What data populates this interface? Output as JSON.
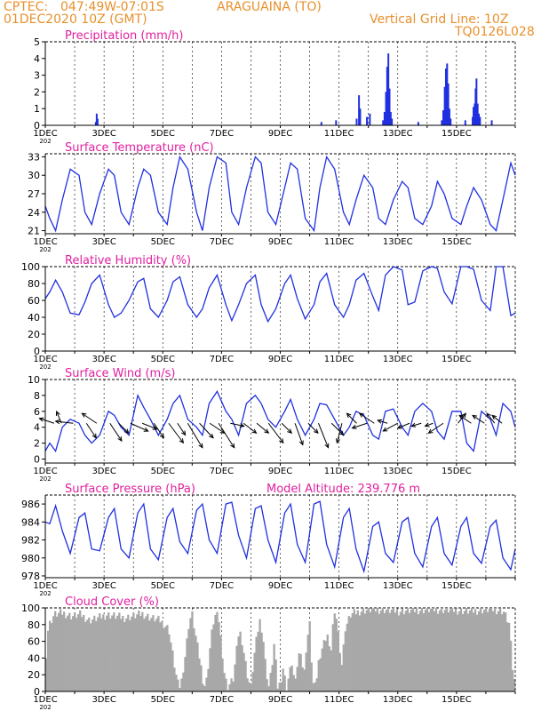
{
  "header": {
    "source": "CPTEC:",
    "coords": "047:49W-07:01S",
    "station": "ARAGUAINA (TO)",
    "run": "01DEC2020 10Z (GMT)",
    "grid_note": "Vertical Grid Line: 10Z",
    "code": "TQ0126L028"
  },
  "colors": {
    "header": "#e8902c",
    "title": "#e020a0",
    "series": "#2030e0",
    "cloud": "#a8a8a8",
    "wind": "#000000",
    "axis": "#000000"
  },
  "x_tick_labels": [
    "1DEC",
    "3DEC",
    "5DEC",
    "7DEC",
    "9DEC",
    "11DEC",
    "13DEC",
    "15DEC"
  ],
  "x_cut_label": "202",
  "chart_data": [
    {
      "type": "bar",
      "id": "precip",
      "title": "Precipitation (mm/h)",
      "ylim": [
        0,
        5
      ],
      "yticks": [
        0,
        1,
        2,
        3,
        4,
        5
      ],
      "bars": [
        [
          1.75,
          0.7
        ],
        [
          1.78,
          0.4
        ],
        [
          1.72,
          0.2
        ],
        [
          9.4,
          0.2
        ],
        [
          9.9,
          0.3
        ],
        [
          10.6,
          0.4
        ],
        [
          10.68,
          1.8
        ],
        [
          10.72,
          1.0
        ],
        [
          10.95,
          0.5
        ],
        [
          11.05,
          0.7
        ],
        [
          11.5,
          0.3
        ],
        [
          11.55,
          0.8
        ],
        [
          11.6,
          2.0
        ],
        [
          11.64,
          3.5
        ],
        [
          11.68,
          4.3
        ],
        [
          11.72,
          2.2
        ],
        [
          11.76,
          0.8
        ],
        [
          11.8,
          0.4
        ],
        [
          12.7,
          0.2
        ],
        [
          13.5,
          0.3
        ],
        [
          13.55,
          0.9
        ],
        [
          13.6,
          2.3
        ],
        [
          13.64,
          3.4
        ],
        [
          13.68,
          3.7
        ],
        [
          13.72,
          2.5
        ],
        [
          13.76,
          1.0
        ],
        [
          13.8,
          0.4
        ],
        [
          14.3,
          0.3
        ],
        [
          14.55,
          0.5
        ],
        [
          14.58,
          1.1
        ],
        [
          14.62,
          1.3
        ],
        [
          14.65,
          2.2
        ],
        [
          14.68,
          2.8
        ],
        [
          14.72,
          1.3
        ],
        [
          14.76,
          0.7
        ],
        [
          14.8,
          0.5
        ],
        [
          15.2,
          0.3
        ]
      ]
    },
    {
      "type": "line",
      "id": "temp",
      "title": "Surface Temperature (nC)",
      "ylim": [
        20.5,
        33.5
      ],
      "yticks": [
        21,
        24,
        27,
        30,
        33
      ],
      "x": [
        0,
        0.15,
        0.35,
        0.58,
        0.85,
        1.15,
        1.35,
        1.58,
        1.85,
        2.15,
        2.35,
        2.58,
        2.85,
        3.15,
        3.35,
        3.58,
        3.85,
        4.15,
        4.35,
        4.58,
        4.85,
        5.15,
        5.35,
        5.58,
        5.85,
        6.15,
        6.35,
        6.58,
        6.85,
        7.15,
        7.35,
        7.58,
        7.85,
        8.15,
        8.35,
        8.58,
        8.85,
        9.15,
        9.35,
        9.58,
        9.85,
        10.15,
        10.35,
        10.58,
        10.85,
        11.15,
        11.35,
        11.58,
        11.85,
        12.15,
        12.35,
        12.58,
        12.85,
        13.15,
        13.35,
        13.58,
        13.85,
        14.15,
        14.35,
        14.58,
        14.85,
        15.15,
        15.35,
        15.58,
        15.85,
        16
      ],
      "y": [
        25,
        23,
        21,
        26,
        31,
        30,
        24,
        22,
        27,
        31,
        30,
        24,
        22,
        28,
        31,
        30,
        24,
        22,
        28,
        33,
        31,
        24,
        21,
        28,
        33,
        32,
        24,
        22,
        28,
        33,
        32,
        24,
        22,
        28,
        32,
        31,
        23,
        21,
        28,
        33,
        31,
        24,
        22,
        26,
        30,
        28,
        23,
        22,
        26,
        29,
        28,
        23,
        22,
        25,
        29,
        27,
        23,
        22,
        25,
        28,
        26,
        22,
        21,
        26,
        32,
        30
      ]
    },
    {
      "type": "line",
      "id": "rh",
      "title": "Relative Humidity (%)",
      "ylim": [
        0,
        100
      ],
      "yticks": [
        0,
        20,
        40,
        60,
        80,
        100
      ],
      "x": [
        0,
        0.15,
        0.35,
        0.58,
        0.85,
        1.15,
        1.35,
        1.58,
        1.85,
        2.15,
        2.35,
        2.58,
        2.85,
        3.15,
        3.35,
        3.58,
        3.85,
        4.15,
        4.35,
        4.58,
        4.85,
        5.15,
        5.35,
        5.58,
        5.85,
        6.15,
        6.35,
        6.58,
        6.85,
        7.15,
        7.35,
        7.58,
        7.85,
        8.15,
        8.35,
        8.58,
        8.85,
        9.15,
        9.35,
        9.58,
        9.85,
        10.15,
        10.35,
        10.58,
        10.85,
        11.15,
        11.35,
        11.58,
        11.85,
        12.15,
        12.35,
        12.58,
        12.85,
        13.15,
        13.35,
        13.58,
        13.85,
        14.15,
        14.35,
        14.58,
        14.85,
        15.15,
        15.35,
        15.58,
        15.85,
        16
      ],
      "y": [
        62,
        70,
        84,
        70,
        45,
        43,
        58,
        80,
        90,
        55,
        40,
        45,
        60,
        82,
        86,
        50,
        40,
        60,
        82,
        88,
        55,
        40,
        50,
        75,
        90,
        55,
        36,
        55,
        80,
        90,
        55,
        35,
        50,
        80,
        90,
        62,
        38,
        55,
        82,
        92,
        55,
        40,
        55,
        84,
        92,
        65,
        48,
        90,
        100,
        96,
        55,
        58,
        95,
        100,
        98,
        70,
        56,
        100,
        100,
        97,
        60,
        48,
        100,
        100,
        42,
        45
      ]
    },
    {
      "type": "line",
      "id": "wind",
      "title": "Surface Wind (m/s)",
      "ylim": [
        -0.5,
        10
      ],
      "yticks": [
        0,
        2,
        4,
        6,
        8,
        10
      ],
      "x": [
        0,
        0.15,
        0.35,
        0.58,
        0.85,
        1.15,
        1.35,
        1.58,
        1.85,
        2.15,
        2.35,
        2.58,
        2.85,
        3.15,
        3.35,
        3.58,
        3.85,
        4.15,
        4.35,
        4.58,
        4.85,
        5.15,
        5.35,
        5.58,
        5.85,
        6.15,
        6.35,
        6.58,
        6.85,
        7.15,
        7.35,
        7.58,
        7.85,
        8.15,
        8.35,
        8.58,
        8.85,
        9.15,
        9.35,
        9.58,
        9.85,
        10.15,
        10.35,
        10.58,
        10.85,
        11.15,
        11.35,
        11.58,
        11.85,
        12.15,
        12.35,
        12.58,
        12.85,
        13.15,
        13.35,
        13.58,
        13.85,
        14.15,
        14.35,
        14.58,
        14.85,
        15.15,
        15.35,
        15.58,
        15.85,
        16
      ],
      "y": [
        1,
        2,
        1,
        4,
        5,
        4.5,
        3,
        2,
        3,
        6,
        5.5,
        4,
        3,
        8,
        6.5,
        5,
        3,
        5,
        7,
        8,
        5,
        4,
        3,
        7,
        8.5,
        6,
        5,
        3,
        7,
        8,
        7,
        5,
        4,
        6,
        7.5,
        5,
        3,
        5,
        7,
        6.8,
        5,
        3,
        4,
        6,
        5.5,
        3,
        2.5,
        6,
        6.3,
        4,
        3,
        6,
        7,
        6,
        3.5,
        2.5,
        6,
        6,
        2,
        1,
        6,
        5,
        3,
        7,
        6,
        4
      ]
    },
    {
      "type": "line",
      "id": "press",
      "title": "Surface Pressure (hPa)",
      "annotation": "Model Altitude: 239.776 m",
      "ylim": [
        977.8,
        987
      ],
      "yticks": [
        978,
        980,
        982,
        984,
        986
      ],
      "x": [
        0,
        0.15,
        0.35,
        0.58,
        0.85,
        1.15,
        1.35,
        1.58,
        1.85,
        2.15,
        2.35,
        2.58,
        2.85,
        3.15,
        3.35,
        3.58,
        3.85,
        4.15,
        4.35,
        4.58,
        4.85,
        5.15,
        5.35,
        5.58,
        5.85,
        6.15,
        6.35,
        6.58,
        6.85,
        7.15,
        7.35,
        7.58,
        7.85,
        8.15,
        8.35,
        8.58,
        8.85,
        9.15,
        9.35,
        9.58,
        9.85,
        10.15,
        10.35,
        10.58,
        10.85,
        11.15,
        11.35,
        11.58,
        11.85,
        12.15,
        12.35,
        12.58,
        12.85,
        13.15,
        13.35,
        13.58,
        13.85,
        14.15,
        14.35,
        14.58,
        14.85,
        15.15,
        15.35,
        15.58,
        15.85,
        16
      ],
      "y": [
        984,
        983.8,
        985.8,
        983,
        980.5,
        984.5,
        985,
        981,
        980.8,
        984.5,
        985.5,
        981,
        980,
        985,
        986,
        981,
        979.8,
        984.5,
        985.5,
        981.8,
        980.5,
        985.3,
        986,
        982,
        980.5,
        986,
        986.2,
        982.5,
        980,
        985.5,
        985.8,
        982,
        979.5,
        985,
        986,
        981.5,
        979.5,
        986,
        986.3,
        981.5,
        979,
        984.5,
        985.5,
        981,
        978.5,
        983.5,
        984,
        980.5,
        979.5,
        984,
        984.5,
        980.5,
        979,
        983.5,
        984.5,
        980.5,
        979.2,
        983.5,
        984.5,
        980.5,
        979.4,
        983.5,
        984.2,
        980,
        978.7,
        981
      ]
    },
    {
      "type": "area",
      "id": "cloud",
      "title": "Cloud Cover (%)",
      "ylim": [
        0,
        100
      ],
      "yticks": [
        0,
        20,
        40,
        60,
        80,
        100
      ],
      "x": [
        0,
        0.1,
        0.3,
        0.6,
        0.9,
        1.2,
        1.5,
        1.8,
        2.1,
        2.4,
        2.7,
        3.0,
        3.3,
        3.6,
        3.9,
        4.2,
        4.4,
        4.5,
        4.6,
        4.75,
        4.9,
        5.0,
        5.1,
        5.3,
        5.4,
        5.5,
        5.6,
        5.7,
        5.8,
        5.9,
        6.0,
        6.1,
        6.2,
        6.4,
        6.5,
        6.6,
        6.7,
        6.9,
        7.0,
        7.1,
        7.2,
        7.3,
        7.4,
        7.5,
        7.6,
        7.7,
        7.8,
        7.9,
        8.0,
        8.1,
        8.2,
        8.3,
        8.4,
        8.5,
        8.6,
        8.7,
        8.8,
        8.9,
        9.0,
        9.1,
        9.2,
        9.3,
        9.4,
        9.5,
        9.6,
        9.7,
        9.8,
        9.9,
        10.0,
        10.1,
        10.2,
        10.4,
        10.7,
        11.0,
        11.5,
        12.0,
        12.5,
        13.0,
        13.5,
        14.0,
        14.5,
        15.0,
        15.3,
        15.6,
        15.8,
        15.9,
        16
      ],
      "y": [
        30,
        78,
        92,
        94,
        90,
        92,
        85,
        88,
        92,
        90,
        88,
        90,
        93,
        88,
        85,
        75,
        30,
        10,
        5,
        40,
        85,
        92,
        70,
        30,
        5,
        15,
        50,
        80,
        92,
        88,
        55,
        20,
        5,
        15,
        45,
        75,
        60,
        15,
        5,
        40,
        65,
        85,
        70,
        30,
        5,
        25,
        60,
        5,
        10,
        30,
        3,
        20,
        35,
        5,
        40,
        50,
        15,
        60,
        80,
        10,
        5,
        35,
        50,
        60,
        70,
        40,
        85,
        92,
        60,
        30,
        75,
        92,
        96,
        98,
        98,
        96,
        97,
        98,
        98,
        97,
        96,
        98,
        98,
        96,
        80,
        30,
        5
      ]
    }
  ],
  "wind_arrows": [
    {
      "day": 0.3,
      "u": -1.5,
      "v": 0.5
    },
    {
      "day": 0.55,
      "u": -0.5,
      "v": 1.2
    },
    {
      "day": 0.95,
      "u": -1.8,
      "v": 0.2
    },
    {
      "day": 1.4,
      "u": 1.0,
      "v": -1.5
    },
    {
      "day": 1.75,
      "u": -1.5,
      "v": 1.0
    },
    {
      "day": 2.2,
      "u": 1.2,
      "v": -1.8
    },
    {
      "day": 2.5,
      "u": 1.0,
      "v": -1.0
    },
    {
      "day": 2.9,
      "u": 1.8,
      "v": -0.8
    },
    {
      "day": 3.3,
      "u": 1.5,
      "v": -0.6
    },
    {
      "day": 3.7,
      "u": 1.0,
      "v": -1.5
    },
    {
      "day": 4.2,
      "u": 1.5,
      "v": -2.0
    },
    {
      "day": 4.5,
      "u": 0.8,
      "v": -1.2
    },
    {
      "day": 4.85,
      "u": 1.5,
      "v": -2.5
    },
    {
      "day": 5.25,
      "u": 1.4,
      "v": -1.5
    },
    {
      "day": 5.6,
      "u": 1.5,
      "v": -1.0
    },
    {
      "day": 5.9,
      "u": 1.6,
      "v": -2.5
    },
    {
      "day": 6.3,
      "u": 1.4,
      "v": -0.3
    },
    {
      "day": 6.75,
      "u": 1.3,
      "v": -1.0
    },
    {
      "day": 7.2,
      "u": 1.2,
      "v": -1.0
    },
    {
      "day": 7.6,
      "u": 1.5,
      "v": -2.0
    },
    {
      "day": 8.05,
      "u": 1.0,
      "v": -1.0
    },
    {
      "day": 8.5,
      "u": 0.8,
      "v": -2.2
    },
    {
      "day": 8.95,
      "u": 1.0,
      "v": -1.0
    },
    {
      "day": 9.3,
      "u": 1.0,
      "v": -2.5
    },
    {
      "day": 9.75,
      "u": 1.2,
      "v": -1.2
    },
    {
      "day": 10.1,
      "u": -0.5,
      "v": -2.0
    },
    {
      "day": 10.6,
      "u": -1.0,
      "v": 1.0
    },
    {
      "day": 10.95,
      "u": -1.5,
      "v": -0.5
    },
    {
      "day": 11.2,
      "u": -1.5,
      "v": 1.0
    },
    {
      "day": 11.65,
      "u": -1.0,
      "v": 0.3
    },
    {
      "day": 12.0,
      "u": -1.5,
      "v": -0.8
    },
    {
      "day": 12.4,
      "u": -1.2,
      "v": -0.5
    },
    {
      "day": 12.8,
      "u": -1.0,
      "v": -0.3
    },
    {
      "day": 13.2,
      "u": -0.8,
      "v": -0.3
    },
    {
      "day": 13.55,
      "u": -1.5,
      "v": -1.0
    },
    {
      "day": 14.05,
      "u": 0.8,
      "v": 1.0
    },
    {
      "day": 14.5,
      "u": -1.2,
      "v": 0.8
    },
    {
      "day": 14.95,
      "u": -1.2,
      "v": 0.8
    },
    {
      "day": 15.3,
      "u": -0.8,
      "v": 1.0
    },
    {
      "day": 15.55,
      "u": -1.0,
      "v": 0.8
    }
  ]
}
